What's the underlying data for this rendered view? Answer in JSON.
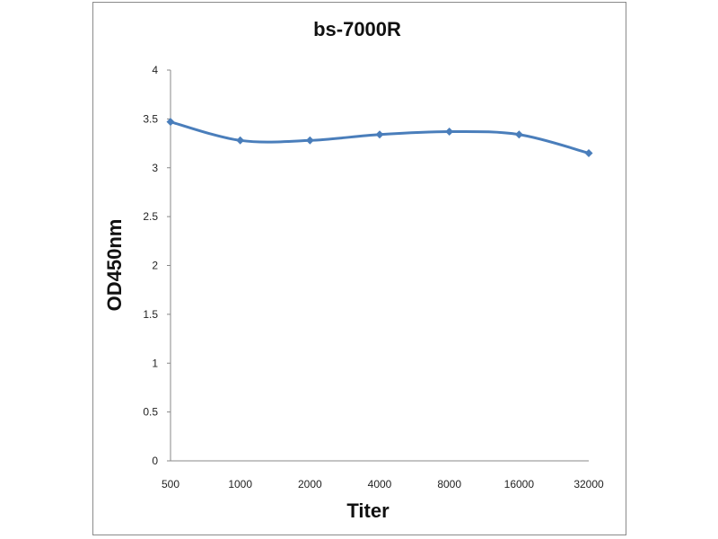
{
  "chart_data": {
    "type": "line",
    "title": "bs-7000R",
    "xlabel": "Titer",
    "ylabel": "OD450nm",
    "categories": [
      "500",
      "1000",
      "2000",
      "4000",
      "8000",
      "16000",
      "32000"
    ],
    "series": [
      {
        "values": [
          3.47,
          3.28,
          3.28,
          3.34,
          3.37,
          3.34,
          3.15
        ]
      }
    ],
    "ylim": [
      0,
      4
    ],
    "yticks": [
      "0",
      "0.5",
      "1",
      "1.5",
      "2",
      "2.5",
      "3",
      "3.5",
      "4"
    ],
    "grid": false,
    "legend": "none",
    "series_color": "#4a7ebb"
  }
}
